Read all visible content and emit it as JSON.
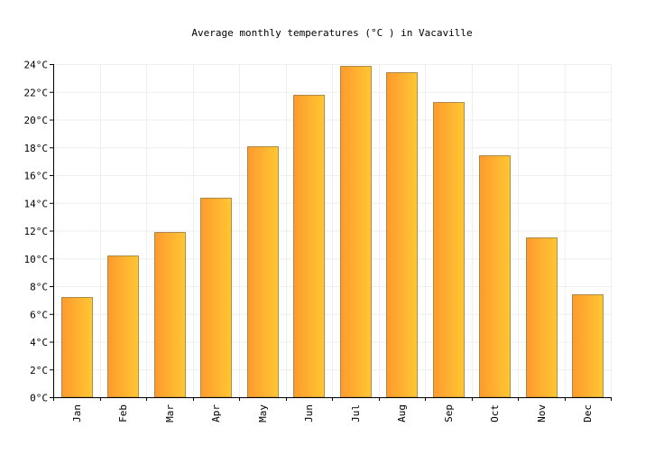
{
  "chart_data": {
    "type": "bar",
    "title": "Average monthly temperatures (°C ) in Vacaville",
    "xlabel": "",
    "ylabel": "",
    "categories": [
      "Jan",
      "Feb",
      "Mar",
      "Apr",
      "May",
      "Jun",
      "Jul",
      "Aug",
      "Sep",
      "Oct",
      "Nov",
      "Dec"
    ],
    "values": [
      7.2,
      10.2,
      11.9,
      14.4,
      18.1,
      21.8,
      23.9,
      23.4,
      21.3,
      17.4,
      11.5,
      7.4
    ],
    "ylim": [
      0,
      24
    ],
    "yticks": [
      0,
      2,
      4,
      6,
      8,
      10,
      12,
      14,
      16,
      18,
      20,
      22,
      24
    ],
    "ytick_labels": [
      "0°C",
      "2°C",
      "4°C",
      "6°C",
      "8°C",
      "10°C",
      "12°C",
      "14°C",
      "16°C",
      "18°C",
      "20°C",
      "22°C",
      "24°C"
    ],
    "grid": true,
    "legend": "none",
    "colors": {
      "bar_start": "#ff9a2e",
      "bar_end": "#ffc733",
      "bar_stroke": "#8a6a2a",
      "grid": "#eeeeee",
      "axis": "#000000"
    }
  }
}
